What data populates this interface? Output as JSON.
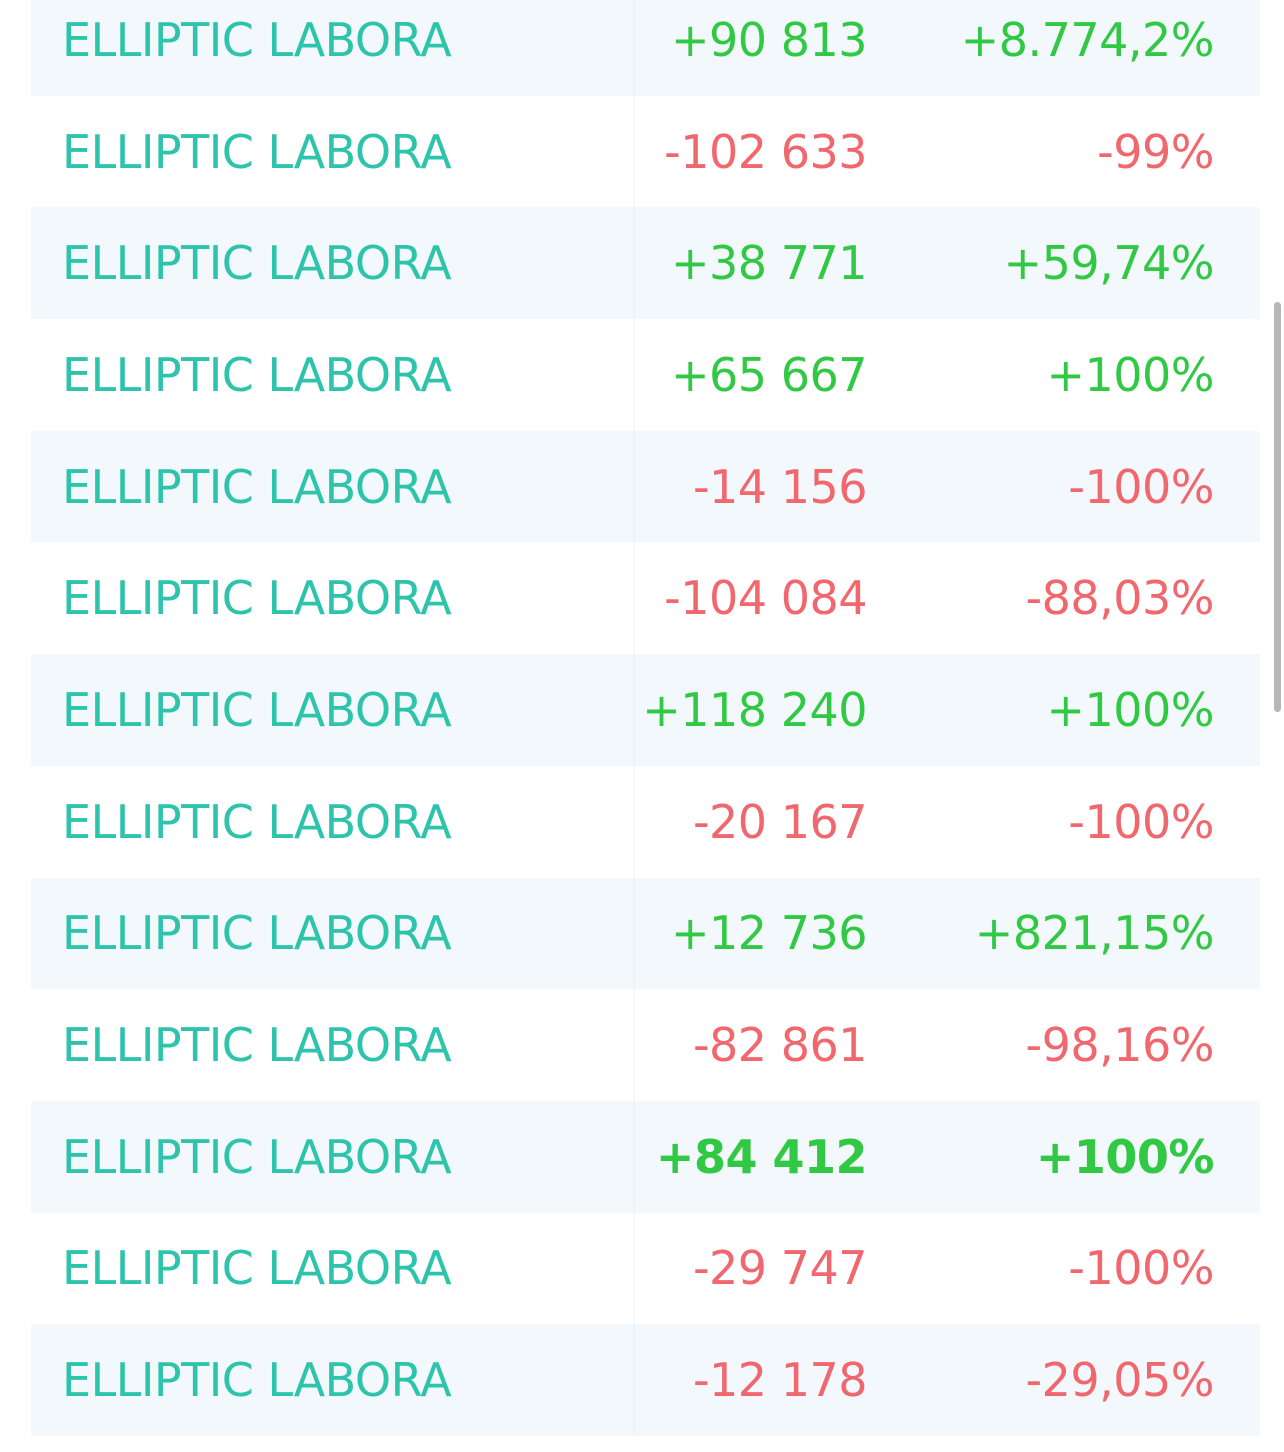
{
  "rows": [
    {
      "name": "ELLIPTIC LABORA",
      "amount": "+90 813",
      "percent": "+8.774,2%",
      "sign": "positive",
      "bold": false
    },
    {
      "name": "ELLIPTIC LABORA",
      "amount": "-102 633",
      "percent": "-99%",
      "sign": "negative",
      "bold": false
    },
    {
      "name": "ELLIPTIC LABORA",
      "amount": "+38 771",
      "percent": "+59,74%",
      "sign": "positive",
      "bold": false
    },
    {
      "name": "ELLIPTIC LABORA",
      "amount": "+65 667",
      "percent": "+100%",
      "sign": "positive",
      "bold": false
    },
    {
      "name": "ELLIPTIC LABORA",
      "amount": "-14 156",
      "percent": "-100%",
      "sign": "negative",
      "bold": false
    },
    {
      "name": "ELLIPTIC LABORA",
      "amount": "-104 084",
      "percent": "-88,03%",
      "sign": "negative",
      "bold": false
    },
    {
      "name": "ELLIPTIC LABORA",
      "amount": "+118 240",
      "percent": "+100%",
      "sign": "positive",
      "bold": false
    },
    {
      "name": "ELLIPTIC LABORA",
      "amount": "-20 167",
      "percent": "-100%",
      "sign": "negative",
      "bold": false
    },
    {
      "name": "ELLIPTIC LABORA",
      "amount": "+12 736",
      "percent": "+821,15%",
      "sign": "positive",
      "bold": false
    },
    {
      "name": "ELLIPTIC LABORA",
      "amount": "-82 861",
      "percent": "-98,16%",
      "sign": "negative",
      "bold": false
    },
    {
      "name": "ELLIPTIC LABORA",
      "amount": "+84 412",
      "percent": "+100%",
      "sign": "positive",
      "bold": true
    },
    {
      "name": "ELLIPTIC LABORA",
      "amount": "-29 747",
      "percent": "-100%",
      "sign": "negative",
      "bold": false
    },
    {
      "name": "ELLIPTIC LABORA",
      "amount": "-12 178",
      "percent": "-29,05%",
      "sign": "negative",
      "bold": false
    }
  ],
  "colors": {
    "name": "#2ec4ac",
    "positive": "#31c844",
    "negative": "#f0676e",
    "row_alt": "#f3f8fc"
  }
}
